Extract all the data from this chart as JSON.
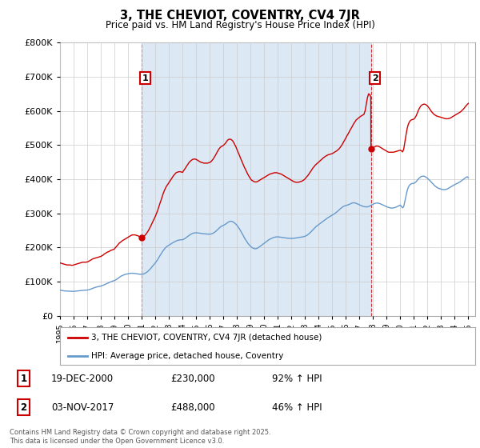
{
  "title": "3, THE CHEVIOT, COVENTRY, CV4 7JR",
  "subtitle": "Price paid vs. HM Land Registry's House Price Index (HPI)",
  "ylim": [
    0,
    800000
  ],
  "yticks": [
    0,
    100000,
    200000,
    300000,
    400000,
    500000,
    600000,
    700000,
    800000
  ],
  "xlim_start": 1995.0,
  "xlim_end": 2025.5,
  "red_color": "#cc0000",
  "blue_color": "#6699cc",
  "fill_color": "#dce9f5",
  "grid_color": "#cccccc",
  "marker1_year": 2000.97,
  "marker2_year": 2017.84,
  "marker1_value": 230000,
  "marker2_value": 488000,
  "legend_label_red": "3, THE CHEVIOT, COVENTRY, CV4 7JR (detached house)",
  "legend_label_blue": "HPI: Average price, detached house, Coventry",
  "table_row1": [
    "1",
    "19-DEC-2000",
    "£230,000",
    "92% ↑ HPI"
  ],
  "table_row2": [
    "2",
    "03-NOV-2017",
    "£488,000",
    "46% ↑ HPI"
  ],
  "footer": "Contains HM Land Registry data © Crown copyright and database right 2025.\nThis data is licensed under the Open Government Licence v3.0.",
  "hpi_red_data_x": [
    1995.0,
    1995.08,
    1995.17,
    1995.25,
    1995.33,
    1995.42,
    1995.5,
    1995.58,
    1995.67,
    1995.75,
    1995.83,
    1995.92,
    1996.0,
    1996.08,
    1996.17,
    1996.25,
    1996.33,
    1996.42,
    1996.5,
    1996.58,
    1996.67,
    1996.75,
    1996.83,
    1996.92,
    1997.0,
    1997.08,
    1997.17,
    1997.25,
    1997.33,
    1997.42,
    1997.5,
    1997.58,
    1997.67,
    1997.75,
    1997.83,
    1997.92,
    1998.0,
    1998.08,
    1998.17,
    1998.25,
    1998.33,
    1998.42,
    1998.5,
    1998.58,
    1998.67,
    1998.75,
    1998.83,
    1998.92,
    1999.0,
    1999.08,
    1999.17,
    1999.25,
    1999.33,
    1999.42,
    1999.5,
    1999.58,
    1999.67,
    1999.75,
    1999.83,
    1999.92,
    2000.0,
    2000.08,
    2000.17,
    2000.25,
    2000.33,
    2000.42,
    2000.5,
    2000.58,
    2000.67,
    2000.75,
    2000.83,
    2000.92,
    2000.97,
    2001.0,
    2001.08,
    2001.17,
    2001.25,
    2001.33,
    2001.42,
    2001.5,
    2001.58,
    2001.67,
    2001.75,
    2001.83,
    2001.92,
    2002.0,
    2002.08,
    2002.17,
    2002.25,
    2002.33,
    2002.42,
    2002.5,
    2002.58,
    2002.67,
    2002.75,
    2002.83,
    2002.92,
    2003.0,
    2003.08,
    2003.17,
    2003.25,
    2003.33,
    2003.42,
    2003.5,
    2003.58,
    2003.67,
    2003.75,
    2003.83,
    2003.92,
    2004.0,
    2004.08,
    2004.17,
    2004.25,
    2004.33,
    2004.42,
    2004.5,
    2004.58,
    2004.67,
    2004.75,
    2004.83,
    2004.92,
    2005.0,
    2005.08,
    2005.17,
    2005.25,
    2005.33,
    2005.42,
    2005.5,
    2005.58,
    2005.67,
    2005.75,
    2005.83,
    2005.92,
    2006.0,
    2006.08,
    2006.17,
    2006.25,
    2006.33,
    2006.42,
    2006.5,
    2006.58,
    2006.67,
    2006.75,
    2006.83,
    2006.92,
    2007.0,
    2007.08,
    2007.17,
    2007.25,
    2007.33,
    2007.42,
    2007.5,
    2007.58,
    2007.67,
    2007.75,
    2007.83,
    2007.92,
    2008.0,
    2008.08,
    2008.17,
    2008.25,
    2008.33,
    2008.42,
    2008.5,
    2008.58,
    2008.67,
    2008.75,
    2008.83,
    2008.92,
    2009.0,
    2009.08,
    2009.17,
    2009.25,
    2009.33,
    2009.42,
    2009.5,
    2009.58,
    2009.67,
    2009.75,
    2009.83,
    2009.92,
    2010.0,
    2010.08,
    2010.17,
    2010.25,
    2010.33,
    2010.42,
    2010.5,
    2010.58,
    2010.67,
    2010.75,
    2010.83,
    2010.92,
    2011.0,
    2011.08,
    2011.17,
    2011.25,
    2011.33,
    2011.42,
    2011.5,
    2011.58,
    2011.67,
    2011.75,
    2011.83,
    2011.92,
    2012.0,
    2012.08,
    2012.17,
    2012.25,
    2012.33,
    2012.42,
    2012.5,
    2012.58,
    2012.67,
    2012.75,
    2012.83,
    2012.92,
    2013.0,
    2013.08,
    2013.17,
    2013.25,
    2013.33,
    2013.42,
    2013.5,
    2013.58,
    2013.67,
    2013.75,
    2013.83,
    2013.92,
    2014.0,
    2014.08,
    2014.17,
    2014.25,
    2014.33,
    2014.42,
    2014.5,
    2014.58,
    2014.67,
    2014.75,
    2014.83,
    2014.92,
    2015.0,
    2015.08,
    2015.17,
    2015.25,
    2015.33,
    2015.42,
    2015.5,
    2015.58,
    2015.67,
    2015.75,
    2015.83,
    2015.92,
    2016.0,
    2016.08,
    2016.17,
    2016.25,
    2016.33,
    2016.42,
    2016.5,
    2016.58,
    2016.67,
    2016.75,
    2016.83,
    2016.92,
    2017.0,
    2017.08,
    2017.17,
    2017.25,
    2017.33,
    2017.42,
    2017.5,
    2017.58,
    2017.67,
    2017.75,
    2017.83,
    2017.84,
    2018.0,
    2018.08,
    2018.17,
    2018.25,
    2018.33,
    2018.42,
    2018.5,
    2018.58,
    2018.67,
    2018.75,
    2018.83,
    2018.92,
    2019.0,
    2019.08,
    2019.17,
    2019.25,
    2019.33,
    2019.42,
    2019.5,
    2019.58,
    2019.67,
    2019.75,
    2019.83,
    2019.92,
    2020.0,
    2020.08,
    2020.17,
    2020.25,
    2020.33,
    2020.42,
    2020.5,
    2020.58,
    2020.67,
    2020.75,
    2020.83,
    2020.92,
    2021.0,
    2021.08,
    2021.17,
    2021.25,
    2021.33,
    2021.42,
    2021.5,
    2021.58,
    2021.67,
    2021.75,
    2021.83,
    2021.92,
    2022.0,
    2022.08,
    2022.17,
    2022.25,
    2022.33,
    2022.42,
    2022.5,
    2022.58,
    2022.67,
    2022.75,
    2022.83,
    2022.92,
    2023.0,
    2023.08,
    2023.17,
    2023.25,
    2023.33,
    2023.42,
    2023.5,
    2023.58,
    2023.67,
    2023.75,
    2023.83,
    2023.92,
    2024.0,
    2024.08,
    2024.17,
    2024.25,
    2024.33,
    2024.42,
    2024.5,
    2024.58,
    2024.67,
    2024.75,
    2024.83,
    2024.92,
    2025.0
  ],
  "hpi_red_data_y": [
    155000,
    154000,
    153000,
    152000,
    151000,
    150000,
    149000,
    149000,
    149000,
    149000,
    148000,
    148000,
    149000,
    150000,
    151000,
    152000,
    153000,
    154000,
    155000,
    156000,
    157000,
    157000,
    157000,
    157000,
    158000,
    159000,
    161000,
    163000,
    165000,
    167000,
    168000,
    169000,
    170000,
    171000,
    172000,
    173000,
    174000,
    176000,
    178000,
    181000,
    183000,
    185000,
    187000,
    188000,
    190000,
    192000,
    193000,
    194000,
    196000,
    200000,
    204000,
    208000,
    212000,
    215000,
    218000,
    220000,
    222000,
    224000,
    226000,
    228000,
    230000,
    232000,
    234000,
    236000,
    237000,
    237000,
    237000,
    236000,
    235000,
    234000,
    232000,
    231000,
    230000,
    230000,
    231000,
    233000,
    236000,
    240000,
    245000,
    250000,
    256000,
    263000,
    270000,
    277000,
    284000,
    291000,
    299000,
    308000,
    318000,
    328000,
    338000,
    348000,
    358000,
    367000,
    374000,
    380000,
    385000,
    390000,
    395000,
    400000,
    405000,
    410000,
    414000,
    418000,
    420000,
    421000,
    422000,
    422000,
    421000,
    420000,
    425000,
    430000,
    435000,
    440000,
    445000,
    450000,
    453000,
    456000,
    458000,
    459000,
    459000,
    458000,
    456000,
    454000,
    452000,
    450000,
    449000,
    448000,
    447000,
    447000,
    447000,
    447000,
    448000,
    449000,
    451000,
    455000,
    459000,
    464000,
    470000,
    476000,
    482000,
    488000,
    492000,
    495000,
    497000,
    499000,
    502000,
    506000,
    511000,
    515000,
    517000,
    517000,
    516000,
    513000,
    508000,
    502000,
    495000,
    487000,
    479000,
    471000,
    463000,
    455000,
    447000,
    439000,
    432000,
    425000,
    418000,
    412000,
    406000,
    401000,
    397000,
    395000,
    393000,
    392000,
    392000,
    393000,
    395000,
    397000,
    399000,
    401000,
    403000,
    405000,
    407000,
    409000,
    411000,
    413000,
    415000,
    416000,
    417000,
    418000,
    419000,
    419000,
    419000,
    418000,
    417000,
    416000,
    415000,
    413000,
    411000,
    409000,
    407000,
    405000,
    403000,
    401000,
    399000,
    397000,
    395000,
    393000,
    392000,
    391000,
    391000,
    391000,
    392000,
    393000,
    394000,
    396000,
    398000,
    401000,
    405000,
    409000,
    413000,
    418000,
    423000,
    428000,
    433000,
    437000,
    441000,
    444000,
    447000,
    450000,
    453000,
    456000,
    459000,
    462000,
    465000,
    467000,
    469000,
    471000,
    472000,
    473000,
    474000,
    475000,
    477000,
    479000,
    481000,
    483000,
    486000,
    489000,
    493000,
    498000,
    503000,
    509000,
    515000,
    521000,
    527000,
    533000,
    539000,
    545000,
    551000,
    557000,
    563000,
    568000,
    573000,
    576000,
    579000,
    582000,
    584000,
    586000,
    588000,
    590000,
    601000,
    620000,
    638000,
    650000,
    648000,
    641000,
    488000,
    491000,
    494000,
    496000,
    497000,
    497000,
    496000,
    494000,
    492000,
    490000,
    488000,
    486000,
    484000,
    482000,
    480000,
    479000,
    479000,
    479000,
    479000,
    479000,
    480000,
    481000,
    482000,
    483000,
    484000,
    485000,
    483000,
    480000,
    488000,
    508000,
    530000,
    548000,
    560000,
    568000,
    572000,
    574000,
    575000,
    576000,
    580000,
    586000,
    594000,
    602000,
    609000,
    614000,
    617000,
    619000,
    620000,
    619000,
    617000,
    614000,
    610000,
    605000,
    600000,
    596000,
    592000,
    589000,
    587000,
    585000,
    584000,
    583000,
    582000,
    581000,
    580000,
    579000,
    578000,
    577000,
    577000,
    577000,
    578000,
    579000,
    581000,
    583000,
    585000,
    587000,
    589000,
    591000,
    593000,
    595000,
    597000,
    600000,
    603000,
    607000,
    611000,
    615000,
    619000,
    622000
  ],
  "hpi_blue_data_x": [
    1995.0,
    1995.08,
    1995.17,
    1995.25,
    1995.33,
    1995.42,
    1995.5,
    1995.58,
    1995.67,
    1995.75,
    1995.83,
    1995.92,
    1996.0,
    1996.08,
    1996.17,
    1996.25,
    1996.33,
    1996.42,
    1996.5,
    1996.58,
    1996.67,
    1996.75,
    1996.83,
    1996.92,
    1997.0,
    1997.08,
    1997.17,
    1997.25,
    1997.33,
    1997.42,
    1997.5,
    1997.58,
    1997.67,
    1997.75,
    1997.83,
    1997.92,
    1998.0,
    1998.08,
    1998.17,
    1998.25,
    1998.33,
    1998.42,
    1998.5,
    1998.58,
    1998.67,
    1998.75,
    1998.83,
    1998.92,
    1999.0,
    1999.08,
    1999.17,
    1999.25,
    1999.33,
    1999.42,
    1999.5,
    1999.58,
    1999.67,
    1999.75,
    1999.83,
    1999.92,
    2000.0,
    2000.08,
    2000.17,
    2000.25,
    2000.33,
    2000.42,
    2000.5,
    2000.58,
    2000.67,
    2000.75,
    2000.83,
    2000.92,
    2001.0,
    2001.08,
    2001.17,
    2001.25,
    2001.33,
    2001.42,
    2001.5,
    2001.58,
    2001.67,
    2001.75,
    2001.83,
    2001.92,
    2002.0,
    2002.08,
    2002.17,
    2002.25,
    2002.33,
    2002.42,
    2002.5,
    2002.58,
    2002.67,
    2002.75,
    2002.83,
    2002.92,
    2003.0,
    2003.08,
    2003.17,
    2003.25,
    2003.33,
    2003.42,
    2003.5,
    2003.58,
    2003.67,
    2003.75,
    2003.83,
    2003.92,
    2004.0,
    2004.08,
    2004.17,
    2004.25,
    2004.33,
    2004.42,
    2004.5,
    2004.58,
    2004.67,
    2004.75,
    2004.83,
    2004.92,
    2005.0,
    2005.08,
    2005.17,
    2005.25,
    2005.33,
    2005.42,
    2005.5,
    2005.58,
    2005.67,
    2005.75,
    2005.83,
    2005.92,
    2006.0,
    2006.08,
    2006.17,
    2006.25,
    2006.33,
    2006.42,
    2006.5,
    2006.58,
    2006.67,
    2006.75,
    2006.83,
    2006.92,
    2007.0,
    2007.08,
    2007.17,
    2007.25,
    2007.33,
    2007.42,
    2007.5,
    2007.58,
    2007.67,
    2007.75,
    2007.83,
    2007.92,
    2008.0,
    2008.08,
    2008.17,
    2008.25,
    2008.33,
    2008.42,
    2008.5,
    2008.58,
    2008.67,
    2008.75,
    2008.83,
    2008.92,
    2009.0,
    2009.08,
    2009.17,
    2009.25,
    2009.33,
    2009.42,
    2009.5,
    2009.58,
    2009.67,
    2009.75,
    2009.83,
    2009.92,
    2010.0,
    2010.08,
    2010.17,
    2010.25,
    2010.33,
    2010.42,
    2010.5,
    2010.58,
    2010.67,
    2010.75,
    2010.83,
    2010.92,
    2011.0,
    2011.08,
    2011.17,
    2011.25,
    2011.33,
    2011.42,
    2011.5,
    2011.58,
    2011.67,
    2011.75,
    2011.83,
    2011.92,
    2012.0,
    2012.08,
    2012.17,
    2012.25,
    2012.33,
    2012.42,
    2012.5,
    2012.58,
    2012.67,
    2012.75,
    2012.83,
    2012.92,
    2013.0,
    2013.08,
    2013.17,
    2013.25,
    2013.33,
    2013.42,
    2013.5,
    2013.58,
    2013.67,
    2013.75,
    2013.83,
    2013.92,
    2014.0,
    2014.08,
    2014.17,
    2014.25,
    2014.33,
    2014.42,
    2014.5,
    2014.58,
    2014.67,
    2014.75,
    2014.83,
    2014.92,
    2015.0,
    2015.08,
    2015.17,
    2015.25,
    2015.33,
    2015.42,
    2015.5,
    2015.58,
    2015.67,
    2015.75,
    2015.83,
    2015.92,
    2016.0,
    2016.08,
    2016.17,
    2016.25,
    2016.33,
    2016.42,
    2016.5,
    2016.58,
    2016.67,
    2016.75,
    2016.83,
    2016.92,
    2017.0,
    2017.08,
    2017.17,
    2017.25,
    2017.33,
    2017.42,
    2017.5,
    2017.58,
    2017.67,
    2017.75,
    2017.83,
    2017.92,
    2018.0,
    2018.08,
    2018.17,
    2018.25,
    2018.33,
    2018.42,
    2018.5,
    2018.58,
    2018.67,
    2018.75,
    2018.83,
    2018.92,
    2019.0,
    2019.08,
    2019.17,
    2019.25,
    2019.33,
    2019.42,
    2019.5,
    2019.58,
    2019.67,
    2019.75,
    2019.83,
    2019.92,
    2020.0,
    2020.08,
    2020.17,
    2020.25,
    2020.33,
    2020.42,
    2020.5,
    2020.58,
    2020.67,
    2020.75,
    2020.83,
    2020.92,
    2021.0,
    2021.08,
    2021.17,
    2021.25,
    2021.33,
    2021.42,
    2021.5,
    2021.58,
    2021.67,
    2021.75,
    2021.83,
    2021.92,
    2022.0,
    2022.08,
    2022.17,
    2022.25,
    2022.33,
    2022.42,
    2022.5,
    2022.58,
    2022.67,
    2022.75,
    2022.83,
    2022.92,
    2023.0,
    2023.08,
    2023.17,
    2023.25,
    2023.33,
    2023.42,
    2023.5,
    2023.58,
    2023.67,
    2023.75,
    2023.83,
    2023.92,
    2024.0,
    2024.08,
    2024.17,
    2024.25,
    2024.33,
    2024.42,
    2024.5,
    2024.58,
    2024.67,
    2024.75,
    2024.83,
    2024.92,
    2025.0
  ],
  "hpi_blue_data_y": [
    75000,
    74500,
    74000,
    73500,
    73000,
    72800,
    72600,
    72400,
    72200,
    72000,
    71800,
    71700,
    71800,
    72000,
    72400,
    72800,
    73200,
    73600,
    74000,
    74400,
    74700,
    75000,
    75200,
    75300,
    75500,
    76000,
    77000,
    78200,
    79500,
    80800,
    82000,
    83200,
    84200,
    85000,
    85700,
    86300,
    87000,
    88200,
    89500,
    91000,
    92500,
    94000,
    95500,
    97000,
    98500,
    100000,
    101200,
    102300,
    103500,
    105000,
    107000,
    109500,
    112000,
    114500,
    116500,
    118000,
    119500,
    120800,
    121800,
    122500,
    123000,
    123800,
    124500,
    124800,
    124800,
    124500,
    124000,
    123500,
    123000,
    122500,
    122000,
    121700,
    121500,
    122000,
    123000,
    124500,
    126500,
    129000,
    132000,
    135500,
    139000,
    143000,
    147000,
    151000,
    155000,
    159500,
    164500,
    170000,
    175500,
    181000,
    186000,
    191000,
    195500,
    199500,
    202500,
    205000,
    207000,
    209000,
    211000,
    213000,
    215000,
    217000,
    218500,
    220000,
    221000,
    222000,
    222500,
    222800,
    223000,
    224000,
    226000,
    228500,
    231000,
    233500,
    236000,
    238000,
    240000,
    241500,
    242500,
    243000,
    243200,
    243000,
    242500,
    242000,
    241500,
    241000,
    240500,
    240200,
    240000,
    239800,
    239500,
    239200,
    239000,
    239500,
    240500,
    242000,
    244000,
    246500,
    249500,
    252800,
    256000,
    259000,
    261500,
    263500,
    265000,
    266500,
    268500,
    271000,
    273500,
    275500,
    276800,
    277000,
    275800,
    274000,
    271500,
    268500,
    265000,
    260500,
    255500,
    250000,
    244000,
    238000,
    232000,
    226000,
    220500,
    215500,
    211000,
    207000,
    203500,
    200500,
    198500,
    197000,
    196500,
    196800,
    198000,
    200000,
    202500,
    205000,
    207500,
    210000,
    212500,
    215000,
    217500,
    220000,
    222500,
    224500,
    226000,
    227500,
    229000,
    230000,
    230800,
    231200,
    231300,
    231000,
    230500,
    230000,
    229500,
    229000,
    228500,
    228000,
    227500,
    227200,
    227000,
    226800,
    226700,
    226800,
    227000,
    227500,
    228000,
    228500,
    229000,
    229500,
    230000,
    230500,
    231200,
    232000,
    233000,
    234500,
    236500,
    239000,
    242000,
    245000,
    248500,
    252000,
    255500,
    259000,
    262000,
    264500,
    267000,
    269500,
    272000,
    274500,
    277000,
    279500,
    282000,
    284500,
    287000,
    289000,
    291000,
    293000,
    295000,
    297000,
    299000,
    301500,
    304000,
    307000,
    310000,
    313000,
    316000,
    318500,
    320500,
    322000,
    323000,
    324000,
    325000,
    326500,
    328000,
    329500,
    330500,
    331000,
    330500,
    329500,
    328000,
    326500,
    325000,
    323500,
    322000,
    320800,
    319800,
    319200,
    319000,
    319200,
    320000,
    321500,
    323000,
    325000,
    327000,
    328500,
    329500,
    330000,
    330000,
    329500,
    328500,
    327000,
    325500,
    324000,
    322500,
    321000,
    319500,
    318000,
    316800,
    316000,
    315500,
    315500,
    316000,
    316800,
    318000,
    319500,
    321000,
    322800,
    324500,
    320000,
    316000,
    320000,
    335000,
    352000,
    366000,
    376000,
    382000,
    385500,
    387000,
    387500,
    388000,
    390000,
    393000,
    397000,
    401000,
    404500,
    407000,
    408500,
    409000,
    408500,
    407000,
    405000,
    402500,
    399500,
    396000,
    392500,
    389000,
    385500,
    382000,
    379000,
    376500,
    374500,
    373000,
    372000,
    371000,
    370000,
    369500,
    369500,
    370000,
    371000,
    372500,
    374500,
    376500,
    378500,
    380500,
    382500,
    384500,
    386000,
    387500,
    389000,
    391000,
    393000,
    395500,
    398000,
    401000,
    403500,
    405500,
    407000,
    404000
  ]
}
